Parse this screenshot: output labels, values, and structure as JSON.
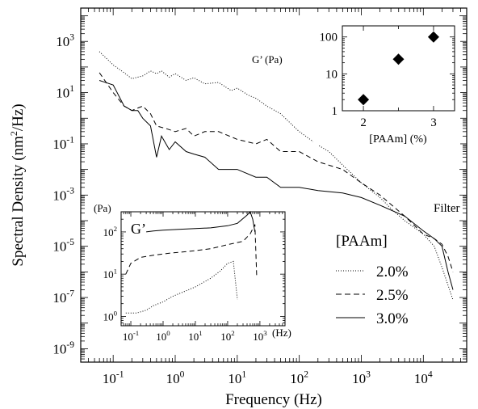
{
  "chart_data": [
    {
      "type": "line",
      "xlabel": "Frequency (Hz)",
      "ylabel_main": "Spectral Density (nm",
      "ylabel_sup": "2",
      "ylabel_tail": "/Hz)",
      "xscale": "log",
      "yscale": "log",
      "xlim": [
        0.03,
        50000
      ],
      "ylim": [
        3e-10,
        20000
      ],
      "xticks": [
        {
          "v": 0.1,
          "b": "10",
          "e": "-1"
        },
        {
          "v": 1,
          "b": "10",
          "e": "0"
        },
        {
          "v": 10,
          "b": "10",
          "e": "1"
        },
        {
          "v": 100,
          "b": "10",
          "e": "2"
        },
        {
          "v": 1000,
          "b": "10",
          "e": "3"
        },
        {
          "v": 10000,
          "b": "10",
          "e": "4"
        }
      ],
      "yticks": [
        {
          "v": 1e-09,
          "b": "10",
          "e": "-9"
        },
        {
          "v": 1e-07,
          "b": "10",
          "e": "-7"
        },
        {
          "v": 1e-05,
          "b": "10",
          "e": "-5"
        },
        {
          "v": 0.001,
          "b": "10",
          "e": "-3"
        },
        {
          "v": 0.1,
          "b": "10",
          "e": "-1"
        },
        {
          "v": 10,
          "b": "10",
          "e": "1"
        },
        {
          "v": 1000,
          "b": "10",
          "e": "3"
        }
      ],
      "annotation": "Filter",
      "legend_title": "[PAAm]",
      "legend_placement": "lower-right",
      "series": [
        {
          "name": "2.0%",
          "dash": "dotted",
          "x": [
            0.06,
            0.1,
            0.15,
            0.2,
            0.3,
            0.4,
            0.5,
            0.6,
            0.8,
            1,
            1.5,
            2,
            3,
            5,
            8,
            10,
            15,
            20,
            30,
            50,
            80,
            100,
            200,
            300,
            500,
            1000,
            2000,
            3000,
            5000,
            10000,
            15000,
            20000,
            25000,
            30000
          ],
          "y": [
            400,
            120,
            60,
            35,
            45,
            70,
            55,
            70,
            40,
            55,
            30,
            38,
            22,
            25,
            12,
            15,
            8,
            6,
            3,
            1.5,
            0.5,
            0.3,
            0.09,
            0.05,
            0.015,
            0.003,
            0.0008,
            0.0003,
            0.0001,
            3e-05,
            1e-05,
            1.5e-06,
            3e-07,
            8e-08
          ]
        },
        {
          "name": "2.5%",
          "dash": "dashed",
          "x": [
            0.06,
            0.1,
            0.15,
            0.2,
            0.3,
            0.4,
            0.5,
            0.7,
            1,
            1.5,
            2,
            3,
            5,
            10,
            20,
            30,
            50,
            100,
            200,
            500,
            1000,
            2000,
            5000,
            10000,
            15000,
            20000,
            25000,
            30000
          ],
          "y": [
            60,
            10,
            3,
            2,
            3,
            1.5,
            0.5,
            0.4,
            0.3,
            0.4,
            0.2,
            0.3,
            0.3,
            0.15,
            0.1,
            0.15,
            0.05,
            0.05,
            0.02,
            0.01,
            0.003,
            0.001,
            0.00015,
            3e-05,
            2e-05,
            1.2e-05,
            4e-06,
            1e-06
          ]
        },
        {
          "name": "3.0%",
          "dash": "solid",
          "x": [
            0.06,
            0.1,
            0.15,
            0.2,
            0.25,
            0.3,
            0.4,
            0.5,
            0.6,
            0.8,
            1,
            1.5,
            2,
            3,
            5,
            10,
            20,
            30,
            50,
            100,
            200,
            500,
            1000,
            2000,
            5000,
            10000,
            15000,
            20000,
            25000,
            30000
          ],
          "y": [
            30,
            20,
            3,
            2,
            2,
            1,
            0.5,
            0.03,
            0.2,
            0.06,
            0.12,
            0.05,
            0.04,
            0.03,
            0.01,
            0.01,
            0.005,
            0.005,
            0.002,
            0.002,
            0.0015,
            0.0012,
            0.0008,
            0.0004,
            0.00015,
            4e-05,
            2e-05,
            1e-05,
            1e-06,
            2e-07
          ]
        }
      ]
    },
    {
      "type": "scatter",
      "ylabel": "G’ (Pa)",
      "xlabel": "[PAAm] (%)",
      "yscale": "log",
      "xlim": [
        1.7,
        3.3
      ],
      "ylim": [
        1,
        200
      ],
      "xticks": [
        "2",
        "3"
      ],
      "yticks": [
        "1",
        "10",
        "100"
      ],
      "points": [
        {
          "x": 2.0,
          "y": 2
        },
        {
          "x": 2.5,
          "y": 25
        },
        {
          "x": 3.0,
          "y": 100
        }
      ]
    },
    {
      "type": "line",
      "title": "G’",
      "ylabel": "(Pa)",
      "xlabel": "(Hz)",
      "xscale": "log",
      "yscale": "log",
      "xlim": [
        0.05,
        6000
      ],
      "ylim": [
        0.6,
        300
      ],
      "xticks": [
        {
          "v": 0.1,
          "b": "10",
          "e": "-1"
        },
        {
          "v": 1,
          "b": "10",
          "e": "0"
        },
        {
          "v": 10,
          "b": "10",
          "e": "1"
        },
        {
          "v": 100,
          "b": "10",
          "e": "2"
        },
        {
          "v": 1000,
          "b": "10",
          "e": "3"
        }
      ],
      "yticks": [
        {
          "v": 1,
          "b": "10",
          "e": "0"
        },
        {
          "v": 10,
          "b": "10",
          "e": "1"
        },
        {
          "v": 100,
          "b": "10",
          "e": "2"
        }
      ],
      "series": [
        {
          "name": "2.0%",
          "dash": "dotted",
          "x": [
            0.07,
            0.15,
            0.3,
            0.5,
            1,
            2,
            5,
            10,
            30,
            60,
            100,
            150,
            200
          ],
          "y": [
            1.2,
            1.2,
            1.4,
            1.8,
            2.2,
            3,
            4,
            5,
            8,
            12,
            18,
            20,
            2.5
          ]
        },
        {
          "name": "2.5%",
          "dash": "dashed",
          "x": [
            0.07,
            0.1,
            0.2,
            0.5,
            1,
            2,
            5,
            10,
            30,
            100,
            300,
            500,
            700,
            800
          ],
          "y": [
            10,
            18,
            25,
            28,
            30,
            32,
            34,
            36,
            40,
            50,
            60,
            90,
            150,
            8
          ]
        },
        {
          "name": "3.0%",
          "dash": "solid",
          "x": [
            0.3,
            0.5,
            1,
            3,
            10,
            30,
            100,
            200,
            400,
            500,
            600,
            700
          ],
          "y": [
            100,
            105,
            110,
            115,
            120,
            125,
            140,
            160,
            250,
            300,
            200,
            100
          ]
        }
      ]
    }
  ]
}
